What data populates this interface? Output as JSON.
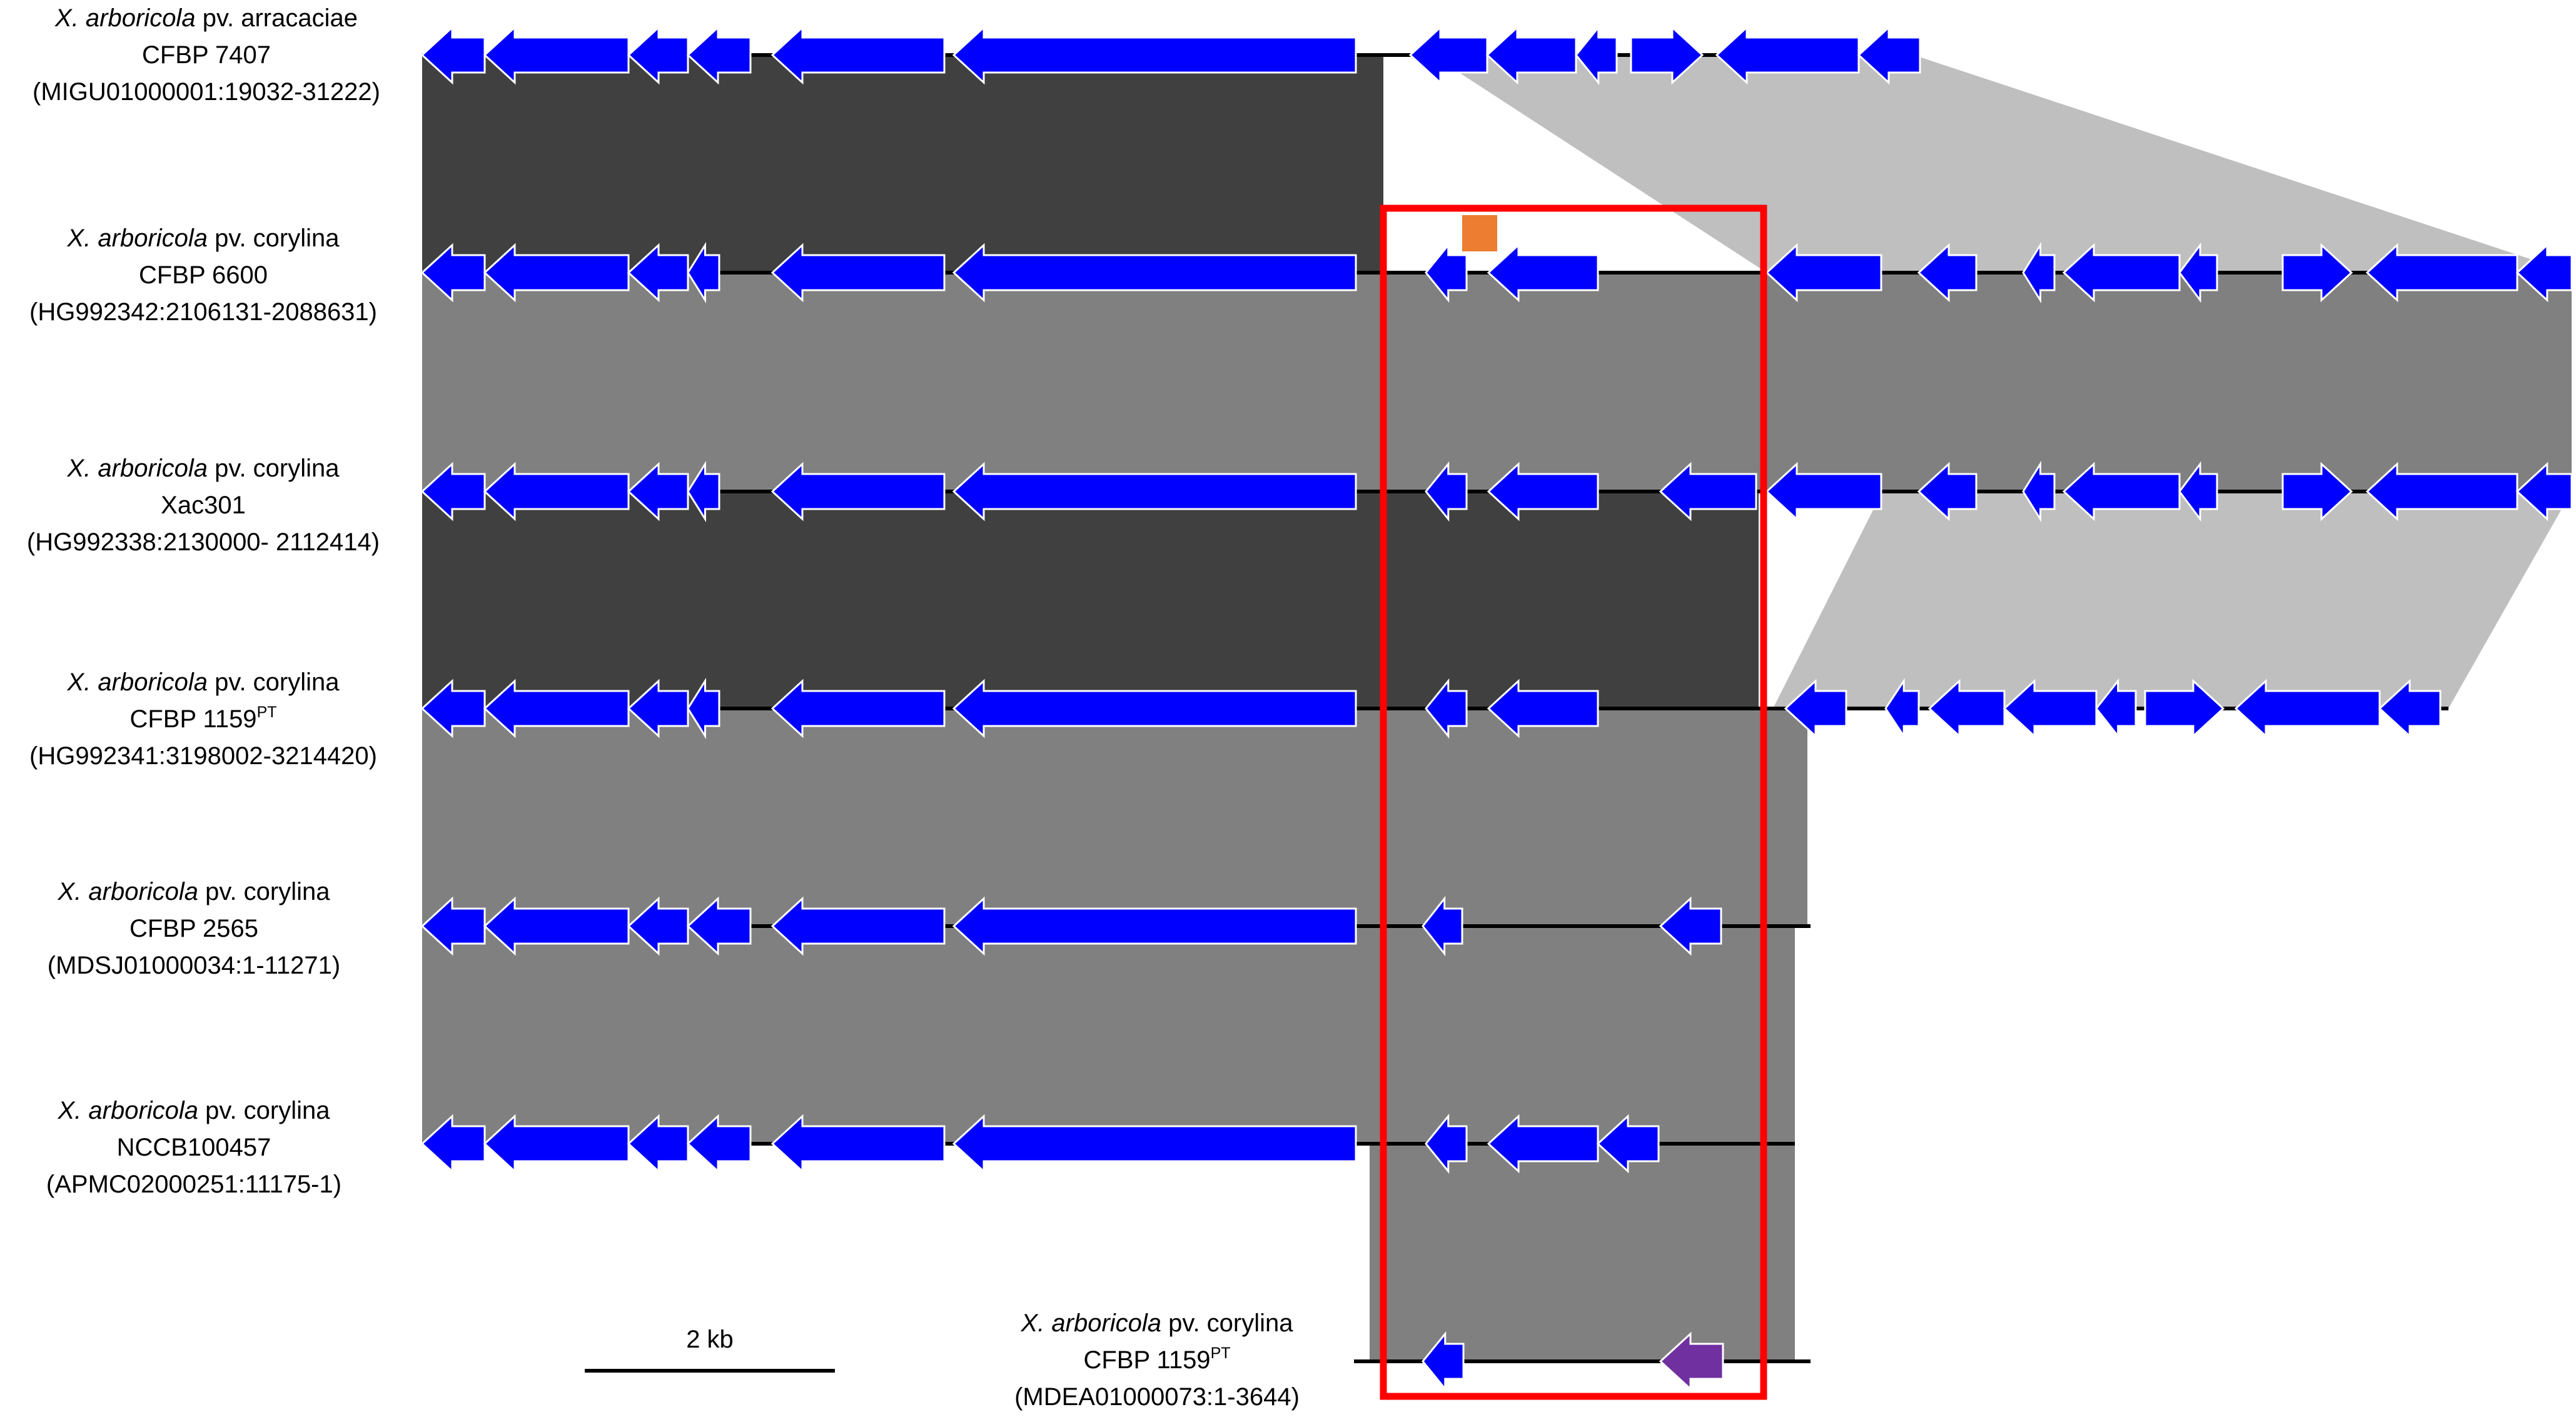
{
  "colors": {
    "gene": "#0000ff",
    "gene_stroke": "#ffffff",
    "backbone": "#000000",
    "band_dark": "#404040",
    "band_mid": "#808080",
    "band_light": "#bfbfbf",
    "highlight_box": "#ff0000",
    "marker_orange": "#ed7d31",
    "gene_purple": "#7030a0"
  },
  "tracks": [
    {
      "id": "t1",
      "species": "X. arboricola",
      "pv": "pv. arracaciae",
      "strain": "CFBP 7407",
      "strain_sup": "",
      "accession": "(MIGU01000001:19032-31222)"
    },
    {
      "id": "t2",
      "species": "X. arboricola",
      "pv": "pv. corylina",
      "strain": "CFBP 6600",
      "strain_sup": "",
      "accession": "(HG992342:2106131-2088631)"
    },
    {
      "id": "t3",
      "species": "X. arboricola",
      "pv": "pv. corylina",
      "strain": "Xac301",
      "strain_sup": "",
      "accession": "(HG992338:2130000- 2112414)"
    },
    {
      "id": "t4",
      "species": "X. arboricola",
      "pv": "pv. corylina",
      "strain": "CFBP 1159",
      "strain_sup": "PT",
      "accession": "(HG992341:3198002-3214420)"
    },
    {
      "id": "t5",
      "species": "X. arboricola",
      "pv": "pv. corylina",
      "strain": "CFBP 2565",
      "strain_sup": "",
      "accession": "(MDSJ01000034:1-11271)"
    },
    {
      "id": "t6",
      "species": "X. arboricola",
      "pv": "pv. corylina",
      "strain": "NCCB100457",
      "strain_sup": "",
      "accession": "(APMC02000251:11175-1)"
    },
    {
      "id": "t7",
      "species": "X. arboricola",
      "pv": "pv. corylina",
      "strain": "CFBP 1159",
      "strain_sup": "PT",
      "accession": "(MDEA01000073:1-3644)"
    }
  ],
  "scale_bar": {
    "label": "2 kb"
  }
}
